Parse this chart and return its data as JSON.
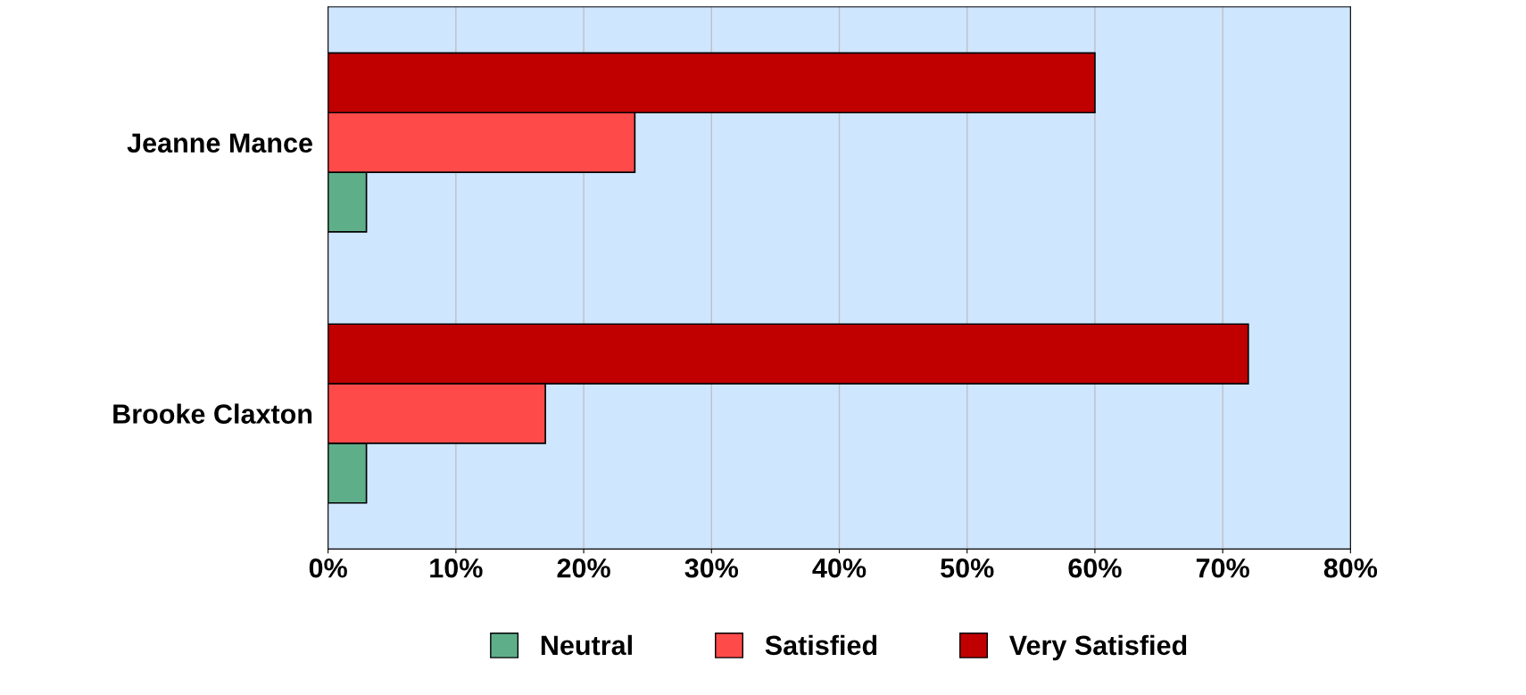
{
  "chart_data": {
    "type": "bar",
    "orientation": "horizontal",
    "categories": [
      "Jeanne Mance",
      "Brooke Claxton"
    ],
    "series": [
      {
        "name": "Neutral",
        "color": "#5fae8a",
        "values": [
          3,
          3
        ]
      },
      {
        "name": "Satisfied",
        "color": "#ff4a4a",
        "values": [
          24,
          17
        ]
      },
      {
        "name": "Very Satisfied",
        "color": "#c00000",
        "values": [
          60,
          72
        ]
      }
    ],
    "xlim": [
      0,
      80
    ],
    "xticks": [
      {
        "value": 0,
        "label": "0%"
      },
      {
        "value": 10,
        "label": "10%"
      },
      {
        "value": 20,
        "label": "20%"
      },
      {
        "value": 30,
        "label": "30%"
      },
      {
        "value": 40,
        "label": "40%"
      },
      {
        "value": 50,
        "label": "50%"
      },
      {
        "value": 60,
        "label": "60%"
      },
      {
        "value": 70,
        "label": "70%"
      },
      {
        "value": 80,
        "label": "80%"
      }
    ],
    "grid": "x",
    "legend": "bottom"
  }
}
